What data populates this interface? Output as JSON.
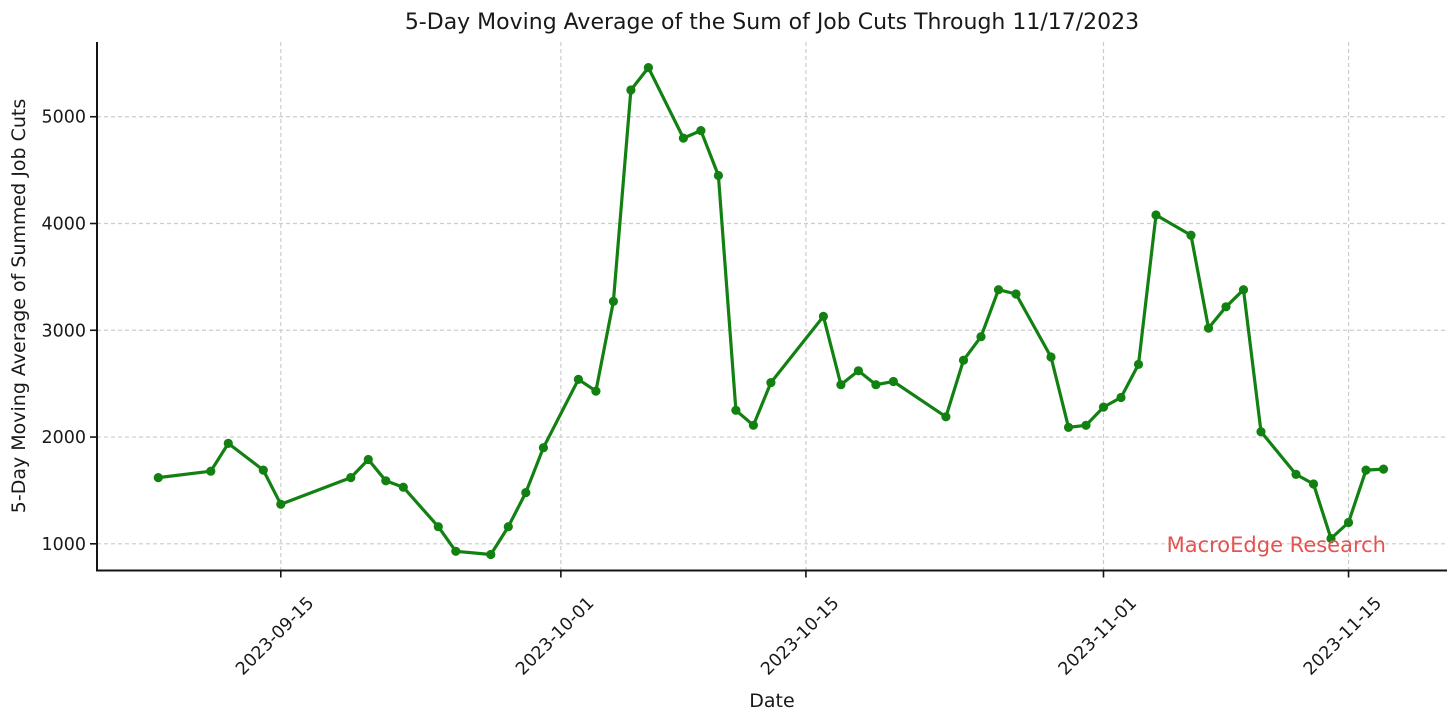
{
  "chart_data": {
    "type": "line",
    "title": "5-Day Moving Average of the Sum of Job Cuts Through 11/17/2023",
    "xlabel": "Date",
    "ylabel": "5-Day Moving Average of Summed Job Cuts",
    "watermark": "MacroEdge Research",
    "grid": true,
    "legend_position": "none",
    "ylim": [
      750,
      5700
    ],
    "xlim": [
      "2023-09-04T12:00:00Z",
      "2023-11-20T15:00:00Z"
    ],
    "y_ticks": [
      1000,
      2000,
      3000,
      4000,
      5000
    ],
    "x_ticks": [
      "2023-09-15",
      "2023-10-01",
      "2023-10-15",
      "2023-11-01",
      "2023-11-15"
    ],
    "series": [
      {
        "name": "5-day moving average of summed job cuts",
        "points": [
          [
            "2023-09-08",
            1620
          ],
          [
            "2023-09-11",
            1680
          ],
          [
            "2023-09-12",
            1940
          ],
          [
            "2023-09-14",
            1690
          ],
          [
            "2023-09-15",
            1370
          ],
          [
            "2023-09-19",
            1620
          ],
          [
            "2023-09-20",
            1790
          ],
          [
            "2023-09-21",
            1590
          ],
          [
            "2023-09-22",
            1530
          ],
          [
            "2023-09-24",
            1160
          ],
          [
            "2023-09-25",
            930
          ],
          [
            "2023-09-27",
            900
          ],
          [
            "2023-09-28",
            1160
          ],
          [
            "2023-09-29",
            1480
          ],
          [
            "2023-09-30",
            1900
          ],
          [
            "2023-10-02",
            2540
          ],
          [
            "2023-10-03",
            2430
          ],
          [
            "2023-10-04",
            3270
          ],
          [
            "2023-10-05",
            5250
          ],
          [
            "2023-10-06",
            5460
          ],
          [
            "2023-10-08",
            4800
          ],
          [
            "2023-10-09",
            4870
          ],
          [
            "2023-10-10",
            4450
          ],
          [
            "2023-10-11",
            2250
          ],
          [
            "2023-10-12",
            2110
          ],
          [
            "2023-10-13",
            2510
          ],
          [
            "2023-10-16",
            3130
          ],
          [
            "2023-10-17",
            2490
          ],
          [
            "2023-10-18",
            2620
          ],
          [
            "2023-10-19",
            2490
          ],
          [
            "2023-10-20",
            2520
          ],
          [
            "2023-10-23",
            2190
          ],
          [
            "2023-10-24",
            2720
          ],
          [
            "2023-10-25",
            2940
          ],
          [
            "2023-10-26",
            3380
          ],
          [
            "2023-10-27",
            3340
          ],
          [
            "2023-10-29",
            2750
          ],
          [
            "2023-10-30",
            2090
          ],
          [
            "2023-10-31",
            2110
          ],
          [
            "2023-11-01",
            2280
          ],
          [
            "2023-11-02",
            2370
          ],
          [
            "2023-11-03",
            2680
          ],
          [
            "2023-11-04",
            4080
          ],
          [
            "2023-11-06",
            3890
          ],
          [
            "2023-11-07",
            3020
          ],
          [
            "2023-11-08",
            3220
          ],
          [
            "2023-11-09",
            3380
          ],
          [
            "2023-11-10",
            2050
          ],
          [
            "2023-11-12",
            1650
          ],
          [
            "2023-11-13",
            1560
          ],
          [
            "2023-11-14",
            1050
          ],
          [
            "2023-11-15",
            1200
          ],
          [
            "2023-11-16",
            1690
          ],
          [
            "2023-11-17",
            1700
          ]
        ]
      }
    ],
    "colors": {
      "line": "#128112",
      "marker": "#128112",
      "grid": "#cccccc",
      "spine": "#141414",
      "text": "#191919",
      "watermark": "#e25352",
      "background": "#ffffff"
    }
  }
}
